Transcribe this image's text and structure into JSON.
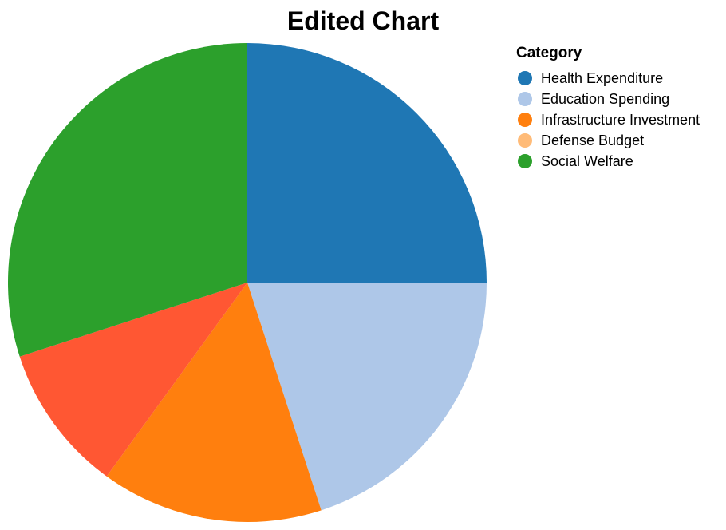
{
  "chart_data": {
    "type": "pie",
    "title": "Edited Chart",
    "legend": {
      "title": "Category",
      "placement": "top-right",
      "entries": [
        {
          "label": "Health Expenditure",
          "color": "#1f77b4"
        },
        {
          "label": "Education Spending",
          "color": "#aec7e8"
        },
        {
          "label": "Infrastructure Investment",
          "color": "#ff7f0e"
        },
        {
          "label": "Defense Budget",
          "color": "#ffbb78"
        },
        {
          "label": "Social Welfare",
          "color": "#2ca02c"
        }
      ]
    },
    "slices": [
      {
        "label": "Health Expenditure",
        "value": 25,
        "color": "#1f77b4"
      },
      {
        "label": "Education Spending",
        "value": 20,
        "color": "#aec7e8"
      },
      {
        "label": "Infrastructure Investment",
        "value": 15,
        "color": "#ff7f0e"
      },
      {
        "label": "",
        "value": 10,
        "color": "#ff5733"
      },
      {
        "label": "Social Welfare",
        "value": 30,
        "color": "#2ca02c"
      }
    ]
  }
}
